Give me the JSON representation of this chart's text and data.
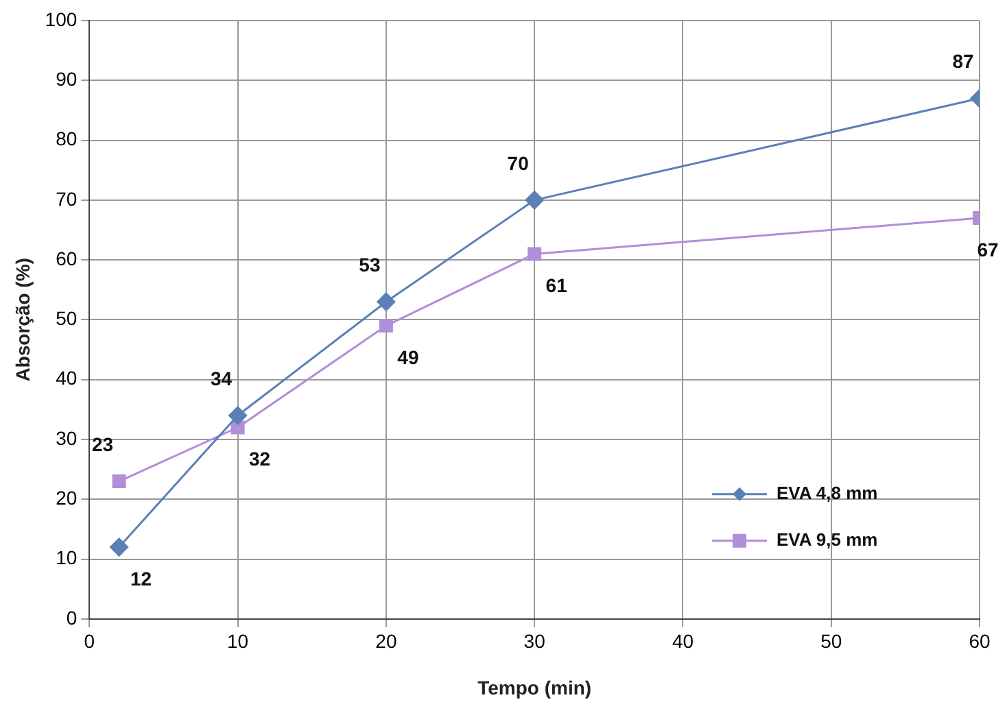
{
  "chart_data": {
    "type": "line",
    "xlabel": "Tempo (min)",
    "ylabel": "Absorção (%)",
    "xlim": [
      0,
      60
    ],
    "xticks": [
      0,
      10,
      20,
      30,
      40,
      50,
      60
    ],
    "ylim": [
      0,
      100
    ],
    "yticks": [
      0,
      10,
      20,
      30,
      40,
      50,
      60,
      70,
      80,
      90,
      100
    ],
    "grid": true,
    "legend": "bottom right",
    "data_labels": true,
    "line_style": "solid",
    "series": [
      {
        "name": "EVA 4,8 mm",
        "color": "#5b80b8",
        "marker": "diamond",
        "x": [
          2,
          10,
          20,
          30,
          60
        ],
        "values": [
          12,
          34,
          53,
          70,
          87
        ]
      },
      {
        "name": "EVA 9,5 mm",
        "color": "#b08ed8",
        "marker": "square",
        "x": [
          2,
          10,
          20,
          30,
          60
        ],
        "values": [
          23,
          32,
          49,
          61,
          67
        ]
      }
    ]
  }
}
